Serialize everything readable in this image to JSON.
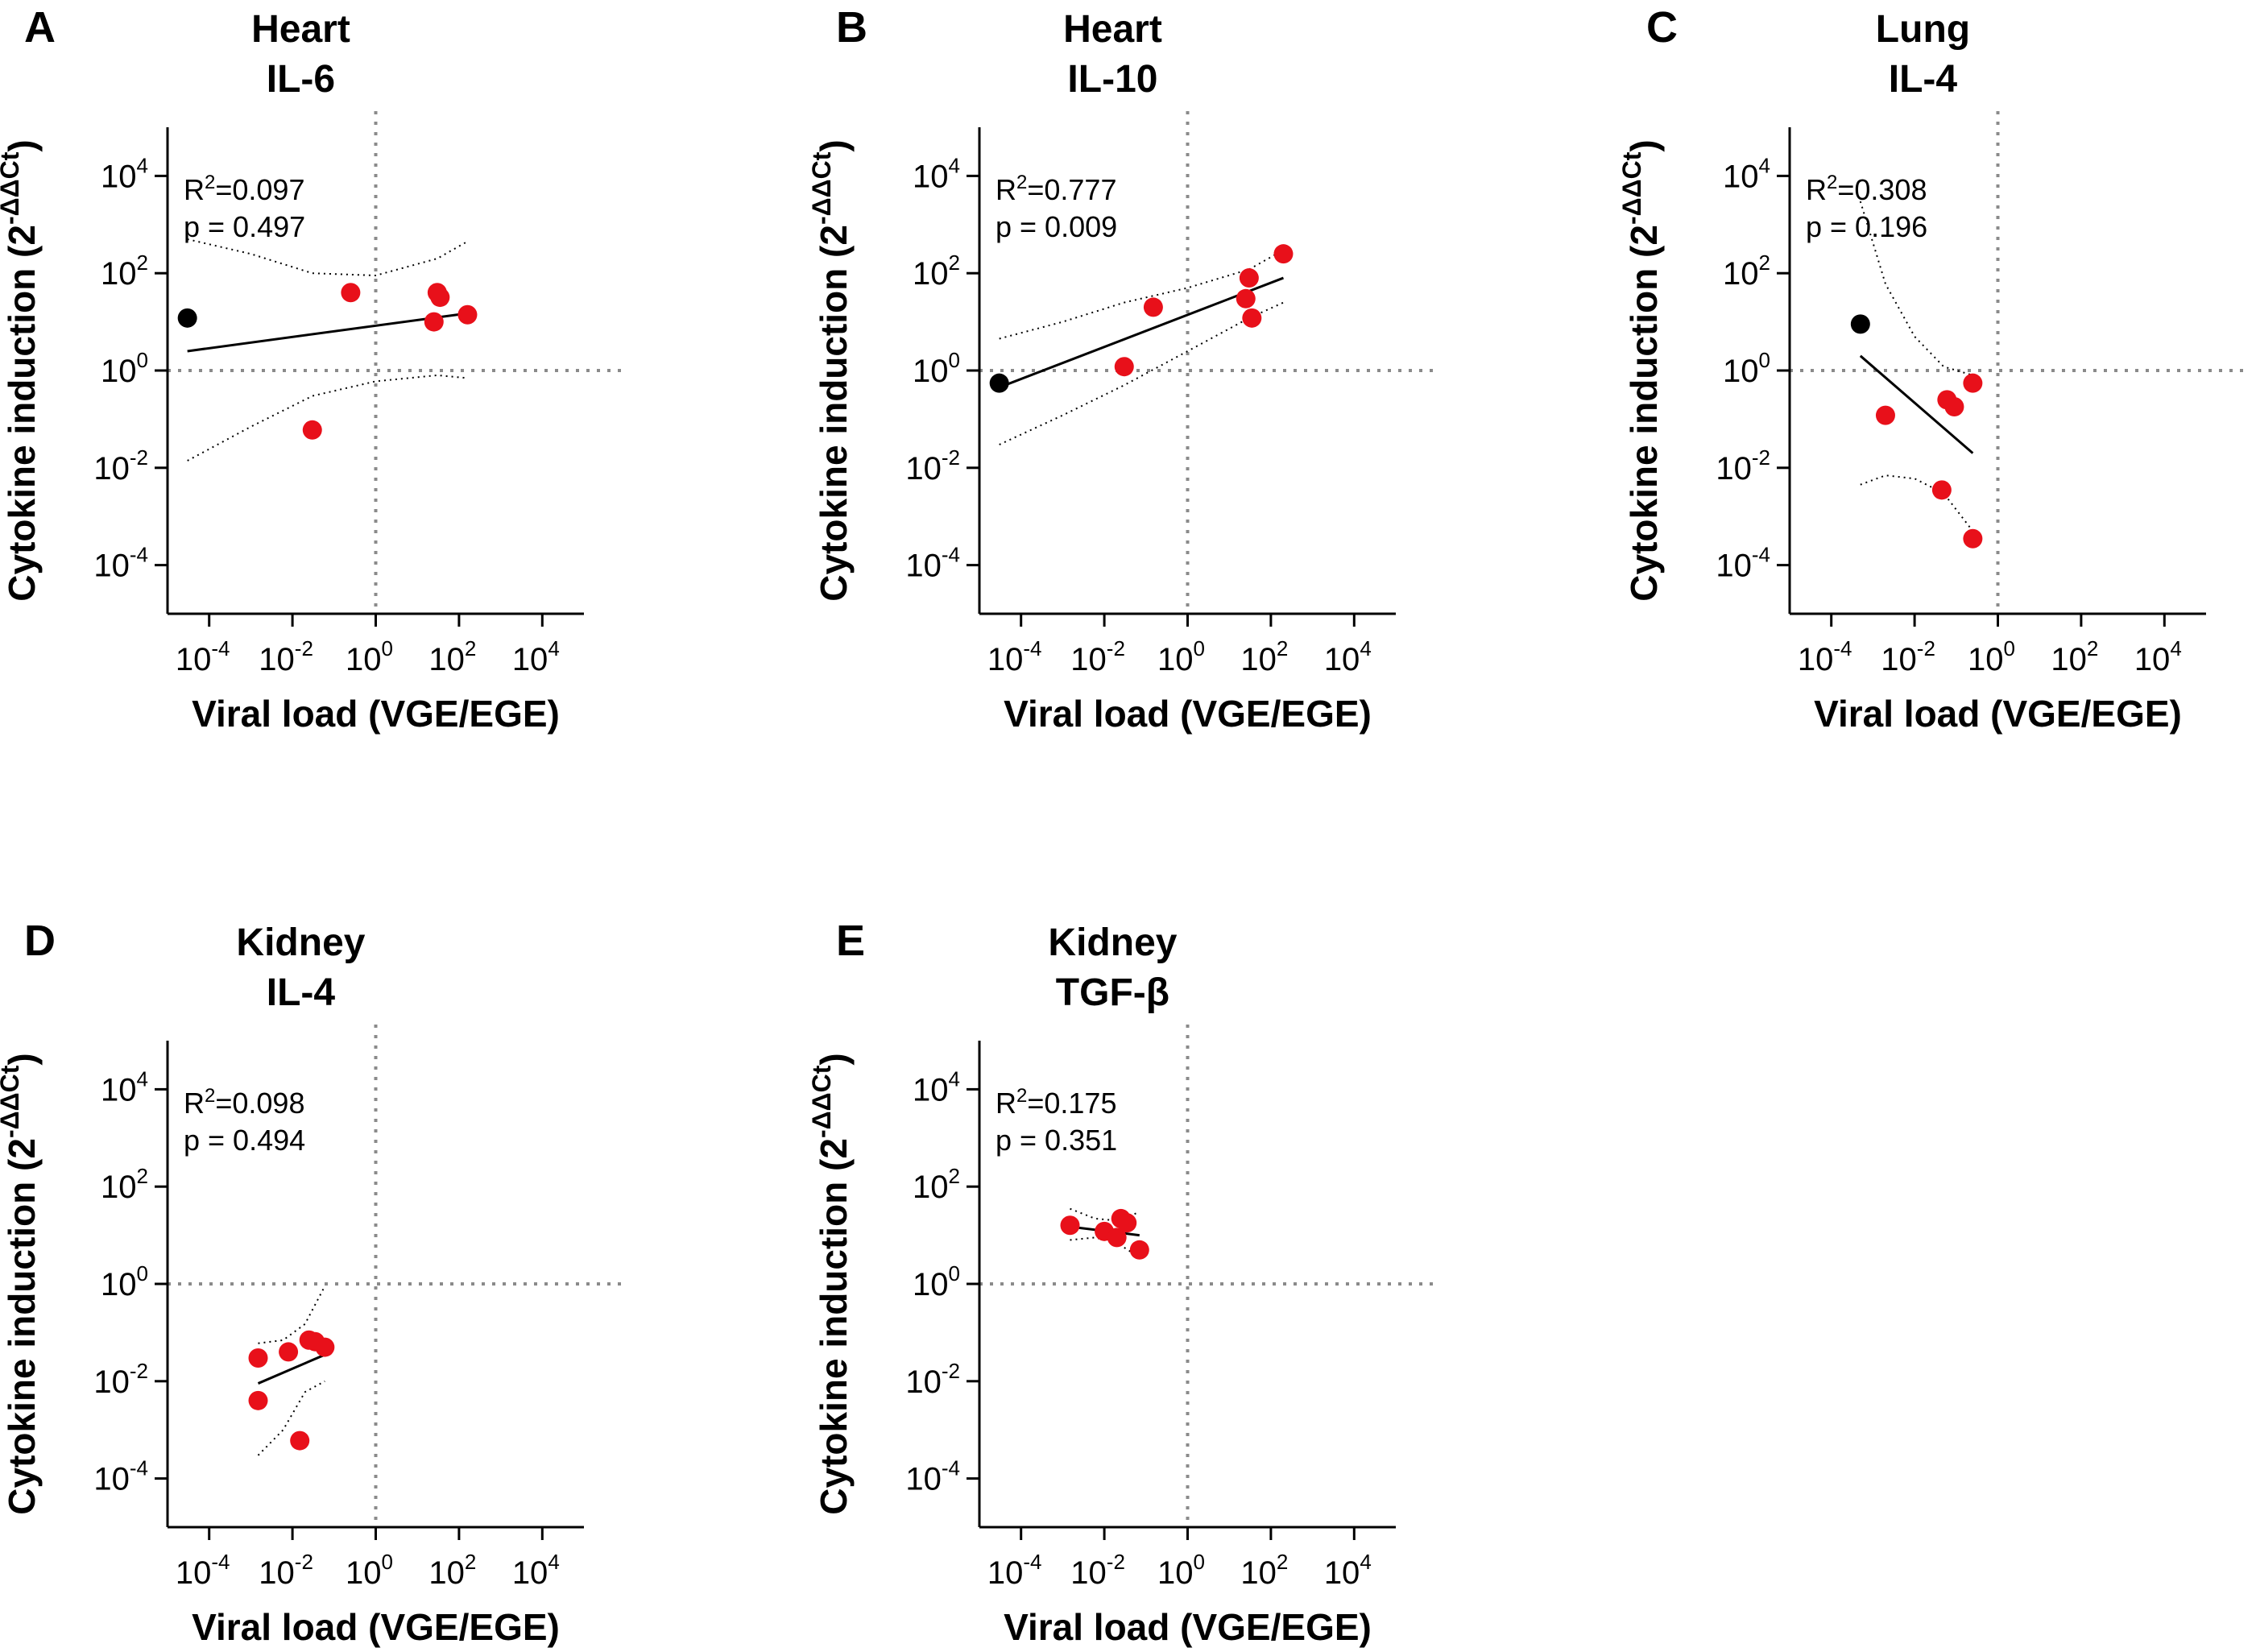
{
  "chart_data": [
    {
      "panel": "A",
      "type": "scatter",
      "title": [
        "Heart",
        "IL-6"
      ],
      "xlabel": "Viral load (VGE/EGE)",
      "ylabel_prefix": "Cytokine induction (2",
      "ylabel_sup": "-ΔΔCt",
      "ylabel_suffix": ")",
      "x_scale": "log10",
      "y_scale": "log10",
      "xlim": [
        1e-05,
        100000
      ],
      "ylim": [
        1e-05,
        100000
      ],
      "x_ticks": [
        0.0001,
        0.01,
        1,
        100,
        10000
      ],
      "y_ticks": [
        0.0001,
        0.01,
        1,
        100,
        10000
      ],
      "reference_lines": {
        "x": 1,
        "y": 1
      },
      "stats": {
        "r2_label": "R",
        "r2_sup": "2",
        "r2_value": "=0.097",
        "p": "p = 0.497"
      },
      "series": [
        {
          "color": "#000000",
          "points": [
            [
              3e-05,
              12
            ]
          ]
        },
        {
          "color": "#e8101a",
          "points": [
            [
              0.25,
              40
            ],
            [
              30,
              40
            ],
            [
              35,
              32
            ],
            [
              25,
              10
            ],
            [
              160,
              14
            ],
            [
              0.03,
              0.06
            ]
          ]
        }
      ],
      "fit": {
        "x": [
          3e-05,
          160
        ],
        "y": [
          2.5,
          15
        ]
      },
      "ci_upper": {
        "x": [
          3e-05,
          0.001,
          0.03,
          1,
          30,
          160
        ],
        "y": [
          500,
          250,
          100,
          90,
          200,
          450
        ]
      },
      "ci_lower": {
        "x": [
          3e-05,
          0.001,
          0.03,
          1,
          30,
          160
        ],
        "y": [
          0.014,
          0.07,
          0.3,
          0.6,
          0.8,
          0.7
        ]
      }
    },
    {
      "panel": "B",
      "type": "scatter",
      "title": [
        "Heart",
        "IL-10"
      ],
      "xlabel": "Viral load (VGE/EGE)",
      "ylabel_prefix": "Cytokine induction (2",
      "ylabel_sup": "-ΔΔCt",
      "ylabel_suffix": ")",
      "x_scale": "log10",
      "y_scale": "log10",
      "xlim": [
        1e-05,
        100000
      ],
      "ylim": [
        1e-05,
        100000
      ],
      "x_ticks": [
        0.0001,
        0.01,
        1,
        100,
        10000
      ],
      "y_ticks": [
        0.0001,
        0.01,
        1,
        100,
        10000
      ],
      "reference_lines": {
        "x": 1,
        "y": 1
      },
      "stats": {
        "r2_label": "R",
        "r2_sup": "2",
        "r2_value": "=0.777",
        "p": "p = 0.009"
      },
      "series": [
        {
          "color": "#000000",
          "points": [
            [
              3e-05,
              0.55
            ]
          ]
        },
        {
          "color": "#e8101a",
          "points": [
            [
              0.15,
              20
            ],
            [
              0.03,
              1.2
            ],
            [
              30,
              80
            ],
            [
              25,
              30
            ],
            [
              35,
              12
            ],
            [
              200,
              250
            ]
          ]
        }
      ],
      "fit": {
        "x": [
          3e-05,
          200
        ],
        "y": [
          0.45,
          80
        ]
      },
      "ci_upper": {
        "x": [
          3e-05,
          0.001,
          0.03,
          1,
          30,
          200
        ],
        "y": [
          4.5,
          10,
          25,
          50,
          120,
          300
        ]
      },
      "ci_lower": {
        "x": [
          3e-05,
          0.001,
          0.03,
          1,
          30,
          200
        ],
        "y": [
          0.03,
          0.12,
          0.5,
          2.5,
          12,
          25
        ]
      }
    },
    {
      "panel": "C",
      "type": "scatter",
      "title": [
        "Lung",
        "IL-4"
      ],
      "xlabel": "Viral load (VGE/EGE)",
      "ylabel_prefix": "Cytokine induction (2",
      "ylabel_sup": "-ΔΔCt",
      "ylabel_suffix": ")",
      "x_scale": "log10",
      "y_scale": "log10",
      "xlim": [
        1e-05,
        100000
      ],
      "ylim": [
        1e-05,
        100000
      ],
      "x_ticks": [
        0.0001,
        0.01,
        1,
        100,
        10000
      ],
      "y_ticks": [
        0.0001,
        0.01,
        1,
        100,
        10000
      ],
      "reference_lines": {
        "x": 1,
        "y": 1
      },
      "stats": {
        "r2_label": "R",
        "r2_sup": "2",
        "r2_value": "=0.308",
        "p": "p = 0.196"
      },
      "series": [
        {
          "color": "#000000",
          "points": [
            [
              0.0005,
              9
            ]
          ]
        },
        {
          "color": "#e8101a",
          "points": [
            [
              0.002,
              0.12
            ],
            [
              0.06,
              0.25
            ],
            [
              0.09,
              0.18
            ],
            [
              0.25,
              0.55
            ],
            [
              0.045,
              0.0035
            ],
            [
              0.25,
              0.00035
            ]
          ]
        }
      ],
      "fit": {
        "x": [
          0.0005,
          0.25
        ],
        "y": [
          2.0,
          0.02
        ]
      },
      "ci_upper": {
        "x": [
          0.0005,
          0.002,
          0.01,
          0.05,
          0.25
        ],
        "y": [
          3000,
          60,
          5,
          1.2,
          0.8
        ]
      },
      "ci_lower": {
        "x": [
          0.0005,
          0.002,
          0.01,
          0.05,
          0.25
        ],
        "y": [
          0.0045,
          0.007,
          0.006,
          0.003,
          0.0005
        ]
      }
    },
    {
      "panel": "D",
      "type": "scatter",
      "title": [
        "Kidney",
        "IL-4"
      ],
      "xlabel": "Viral load (VGE/EGE)",
      "ylabel_prefix": "Cytokine induction (2",
      "ylabel_sup": "-ΔΔCt",
      "ylabel_suffix": ")",
      "x_scale": "log10",
      "y_scale": "log10",
      "xlim": [
        1e-05,
        100000
      ],
      "ylim": [
        1e-05,
        100000
      ],
      "x_ticks": [
        0.0001,
        0.01,
        1,
        100,
        10000
      ],
      "y_ticks": [
        0.0001,
        0.01,
        1,
        100,
        10000
      ],
      "reference_lines": {
        "x": 1,
        "y": 1
      },
      "stats": {
        "r2_label": "R",
        "r2_sup": "2",
        "r2_value": "=0.098",
        "p": "p = 0.494"
      },
      "series": [
        {
          "color": "#e8101a",
          "points": [
            [
              0.0015,
              0.03
            ],
            [
              0.0015,
              0.004
            ],
            [
              0.008,
              0.04
            ],
            [
              0.025,
              0.07
            ],
            [
              0.035,
              0.065
            ],
            [
              0.06,
              0.05
            ],
            [
              0.015,
              0.0006
            ]
          ]
        }
      ],
      "fit": {
        "x": [
          0.0015,
          0.06
        ],
        "y": [
          0.009,
          0.035
        ]
      },
      "ci_upper": {
        "x": [
          0.0015,
          0.006,
          0.02,
          0.06
        ],
        "y": [
          0.06,
          0.07,
          0.15,
          0.9
        ]
      },
      "ci_lower": {
        "x": [
          0.0015,
          0.006,
          0.02,
          0.06
        ],
        "y": [
          0.0003,
          0.001,
          0.006,
          0.01
        ]
      }
    },
    {
      "panel": "E",
      "type": "scatter",
      "title": [
        "Kidney",
        "TGF-β"
      ],
      "xlabel": "Viral load (VGE/EGE)",
      "ylabel_prefix": "Cytokine induction (2",
      "ylabel_sup": "-ΔΔCt",
      "ylabel_suffix": ")",
      "x_scale": "log10",
      "y_scale": "log10",
      "xlim": [
        1e-05,
        100000
      ],
      "ylim": [
        1e-05,
        100000
      ],
      "x_ticks": [
        0.0001,
        0.01,
        1,
        100,
        10000
      ],
      "y_ticks": [
        0.0001,
        0.01,
        1,
        100,
        10000
      ],
      "reference_lines": {
        "x": 1,
        "y": 1
      },
      "stats": {
        "r2_label": "R",
        "r2_sup": "2",
        "r2_value": "=0.175",
        "p": "p = 0.351"
      },
      "series": [
        {
          "color": "#e8101a",
          "points": [
            [
              0.0015,
              16
            ],
            [
              0.01,
              12
            ],
            [
              0.02,
              9
            ],
            [
              0.025,
              22
            ],
            [
              0.035,
              18
            ],
            [
              0.07,
              5
            ]
          ]
        }
      ],
      "fit": {
        "x": [
          0.0015,
          0.07
        ],
        "y": [
          15,
          10
        ]
      },
      "ci_upper": {
        "x": [
          0.0015,
          0.006,
          0.02,
          0.07
        ],
        "y": [
          35,
          22,
          20,
          30
        ]
      },
      "ci_lower": {
        "x": [
          0.0015,
          0.006,
          0.02,
          0.07
        ],
        "y": [
          8,
          9,
          7,
          3.5
        ]
      }
    }
  ]
}
